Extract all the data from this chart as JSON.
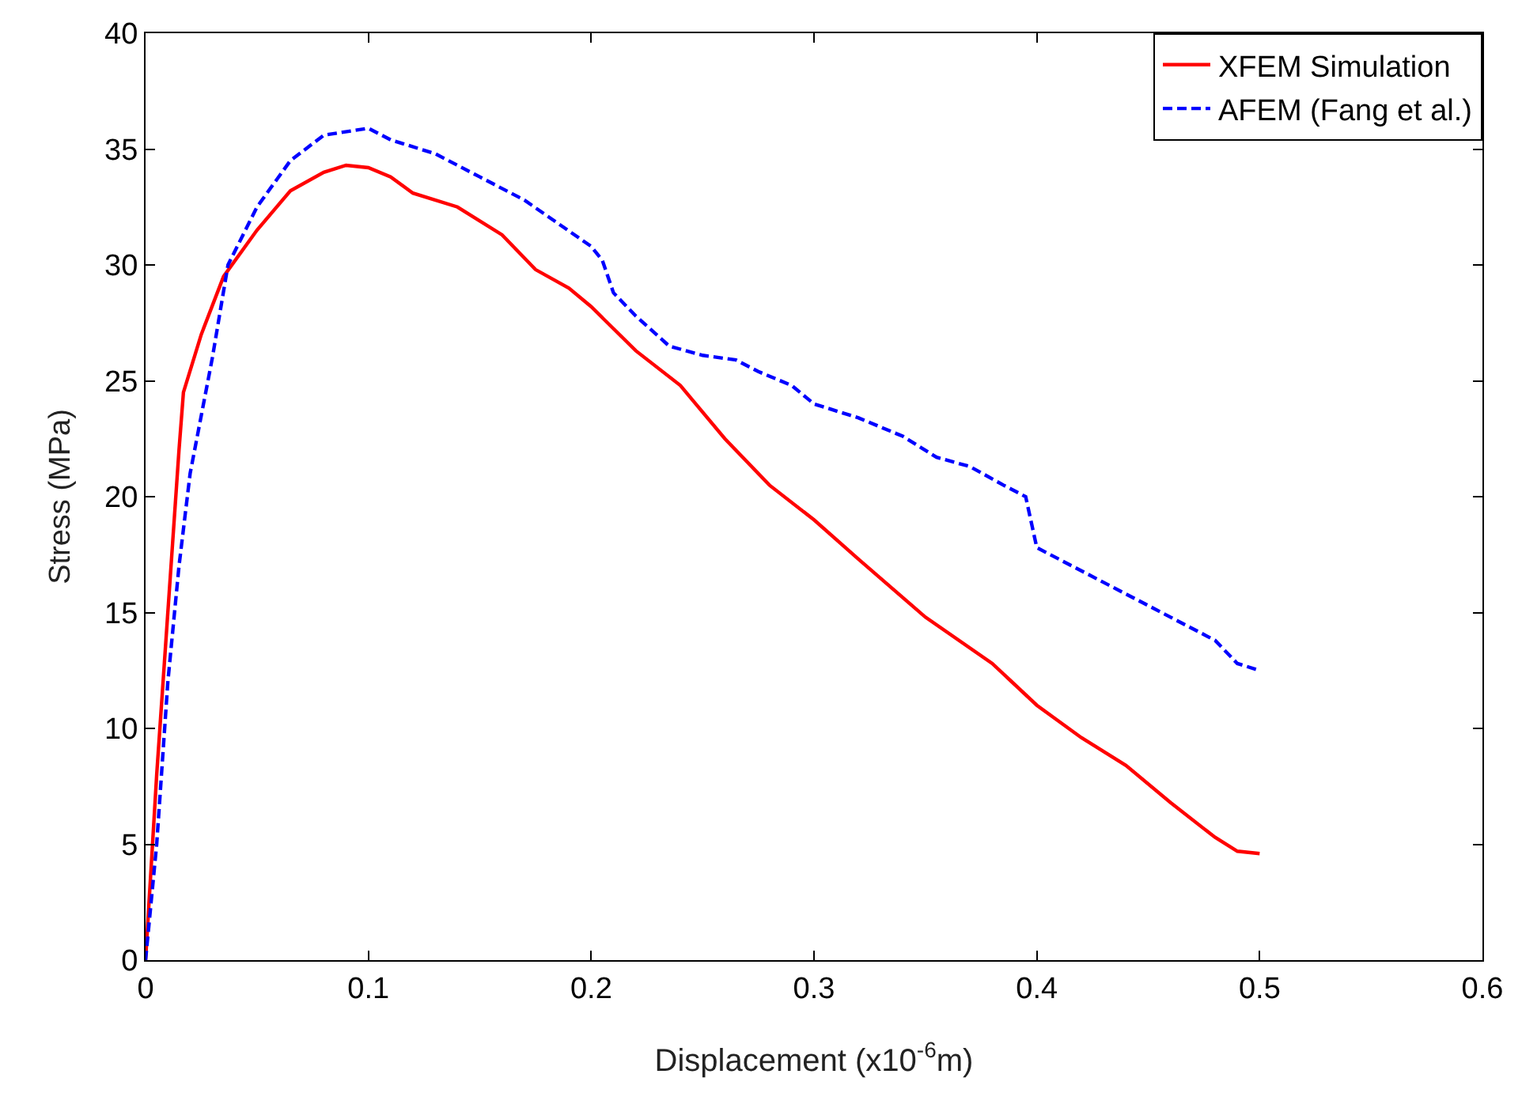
{
  "chart_data": {
    "type": "line",
    "xlabel": "Displacement (x10$^{-6}$m)",
    "ylabel": "Stress (MPa)",
    "xlim": [
      0,
      0.6
    ],
    "xticks": [
      0,
      0.1,
      0.2,
      0.3,
      0.4,
      0.5,
      0.6
    ],
    "ylim": [
      0,
      40
    ],
    "yticks": [
      0,
      5,
      10,
      15,
      20,
      25,
      30,
      35,
      40
    ],
    "grid": false,
    "legend": "top right",
    "marker": "none",
    "series": [
      {
        "name": "XFEM Simulation",
        "color": "#ff0000",
        "line_style": "solid",
        "x": [
          0,
          0.005,
          0.01,
          0.015,
          0.017,
          0.025,
          0.035,
          0.05,
          0.065,
          0.08,
          0.09,
          0.1,
          0.11,
          0.12,
          0.14,
          0.16,
          0.175,
          0.19,
          0.2,
          0.22,
          0.24,
          0.26,
          0.28,
          0.3,
          0.32,
          0.35,
          0.38,
          0.4,
          0.42,
          0.44,
          0.46,
          0.48,
          0.49,
          0.5
        ],
        "values": [
          0,
          8,
          15,
          22,
          24.5,
          27,
          29.5,
          31.5,
          33.2,
          34,
          34.3,
          34.2,
          33.8,
          33.1,
          32.5,
          31.3,
          29.8,
          29,
          28.2,
          26.3,
          24.8,
          22.5,
          20.5,
          19,
          17.3,
          14.8,
          12.8,
          11,
          9.6,
          8.4,
          6.8,
          5.3,
          4.7,
          4.6
        ]
      },
      {
        "name": "AFEM (Fang et al.)",
        "color": "#0000ff",
        "line_style": "dashed",
        "x": [
          0,
          0.005,
          0.01,
          0.015,
          0.02,
          0.03,
          0.037,
          0.05,
          0.065,
          0.08,
          0.1,
          0.11,
          0.13,
          0.15,
          0.17,
          0.185,
          0.2,
          0.205,
          0.21,
          0.22,
          0.235,
          0.25,
          0.265,
          0.275,
          0.29,
          0.3,
          0.32,
          0.34,
          0.355,
          0.37,
          0.385,
          0.395,
          0.4,
          0.42,
          0.44,
          0.46,
          0.48,
          0.49,
          0.5
        ],
        "values": [
          0,
          5,
          12,
          17,
          21,
          26,
          30,
          32.5,
          34.5,
          35.6,
          35.9,
          35.4,
          34.8,
          33.8,
          32.8,
          31.8,
          30.8,
          30.2,
          28.8,
          27.8,
          26.5,
          26.1,
          25.9,
          25.4,
          24.8,
          24,
          23.4,
          22.6,
          21.7,
          21.3,
          20.5,
          20,
          17.8,
          16.8,
          15.8,
          14.8,
          13.8,
          12.8,
          12.5
        ]
      }
    ]
  }
}
